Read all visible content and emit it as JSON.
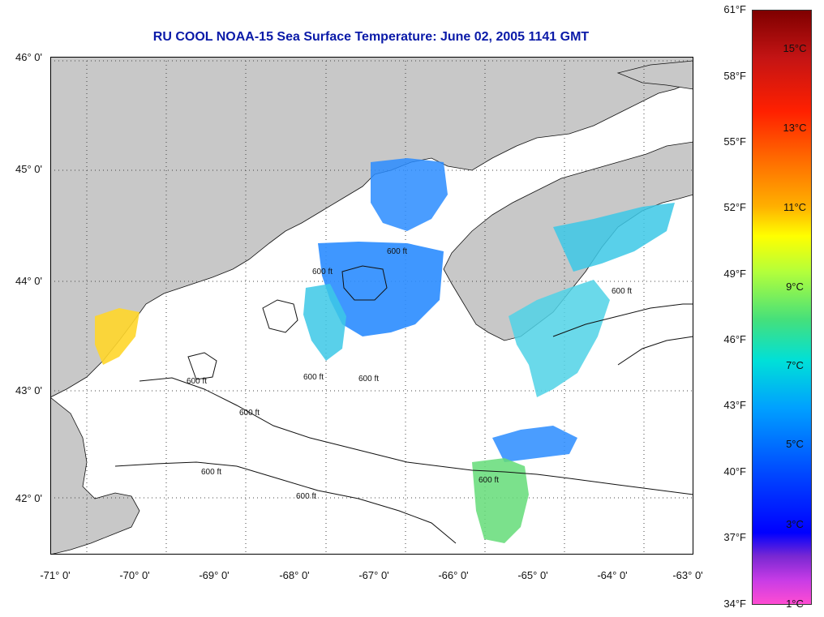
{
  "title": "RU COOL  NOAA-15  Sea Surface Temperature:  June 02, 2005 1141 GMT",
  "map": {
    "lat_labels": [
      "46° 0'",
      "45° 0'",
      "44° 0'",
      "43° 0'",
      "42° 0'"
    ],
    "lon_labels": [
      "-71° 0'",
      "-70° 0'",
      "-69° 0'",
      "-68° 0'",
      "-67° 0'",
      "-66° 0'",
      "-65° 0'",
      "-64° 0'",
      "-63° 0'"
    ],
    "contour_label": "600 ft",
    "colors": {
      "land": "#c8c8c8",
      "ocean": "#ffffff",
      "contour": "#111111",
      "grid": "#444444"
    }
  },
  "colorbar": {
    "fahrenheit": [
      "61°F",
      "58°F",
      "55°F",
      "52°F",
      "49°F",
      "46°F",
      "43°F",
      "40°F",
      "37°F",
      "34°F"
    ],
    "celsius": [
      "15°C",
      "13°C",
      "11°C",
      "9°C",
      "7°C",
      "5°C",
      "3°C",
      "1°C"
    ]
  }
}
